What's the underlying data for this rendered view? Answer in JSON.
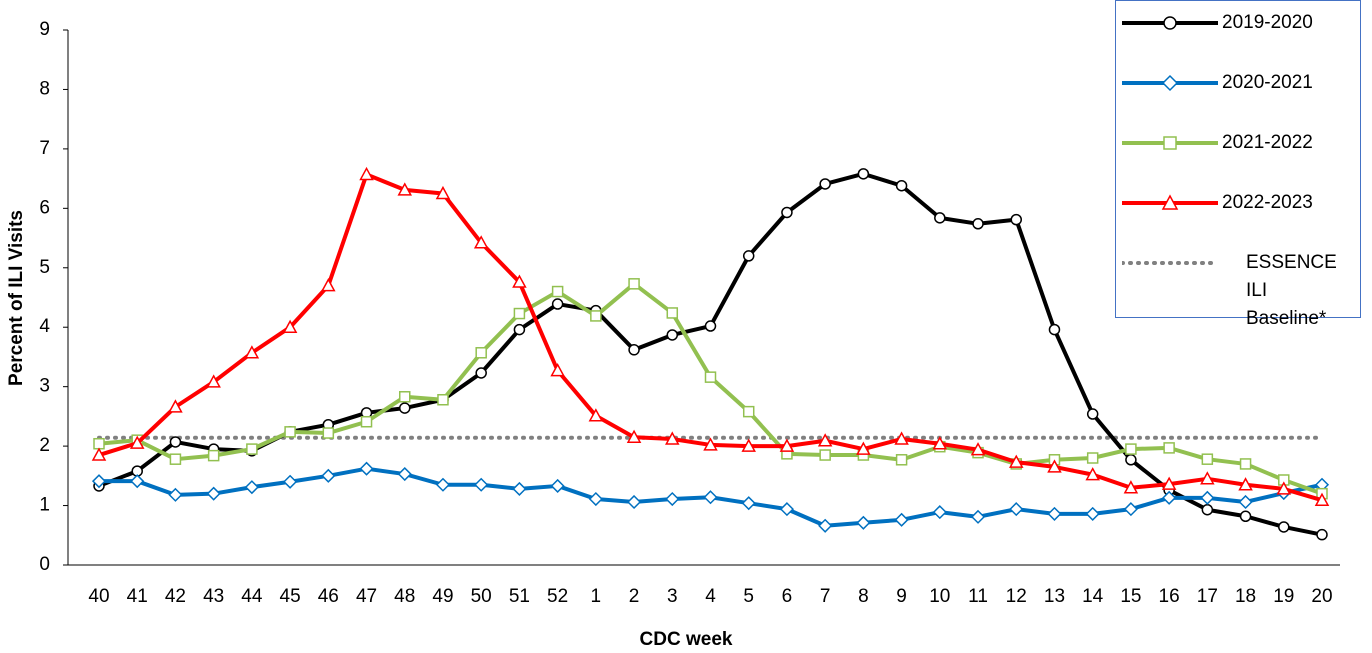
{
  "chart_data": {
    "type": "line",
    "x_label": "CDC week",
    "y_label": "Percent of ILI Visits",
    "categories": [
      "40",
      "41",
      "42",
      "43",
      "44",
      "45",
      "46",
      "47",
      "48",
      "49",
      "50",
      "51",
      "52",
      "1",
      "2",
      "3",
      "4",
      "5",
      "6",
      "7",
      "8",
      "9",
      "10",
      "11",
      "12",
      "13",
      "14",
      "15",
      "16",
      "17",
      "18",
      "19",
      "20"
    ],
    "ylim": [
      0,
      9
    ],
    "yticks": [
      0,
      1,
      2,
      3,
      4,
      5,
      6,
      7,
      8,
      9
    ],
    "series": [
      {
        "name": "2019-2020",
        "color": "#000000",
        "marker": "circle",
        "dash": "solid",
        "values": [
          1.33,
          1.58,
          2.07,
          1.95,
          1.92,
          2.24,
          2.36,
          2.56,
          2.64,
          2.78,
          3.23,
          3.96,
          4.39,
          4.28,
          3.62,
          3.87,
          4.02,
          5.2,
          5.93,
          6.41,
          6.58,
          6.38,
          5.84,
          5.74,
          5.81,
          3.96,
          2.54,
          1.77,
          1.26,
          0.93,
          0.82,
          0.64,
          0.51
        ]
      },
      {
        "name": "2020-2021",
        "color": "#0070c0",
        "marker": "diamond",
        "dash": "solid",
        "values": [
          1.41,
          1.41,
          1.18,
          1.2,
          1.31,
          1.4,
          1.5,
          1.62,
          1.53,
          1.35,
          1.35,
          1.28,
          1.33,
          1.11,
          1.06,
          1.11,
          1.14,
          1.04,
          0.94,
          0.66,
          0.71,
          0.76,
          0.89,
          0.81,
          0.94,
          0.86,
          0.86,
          0.94,
          1.13,
          1.13,
          1.06,
          1.21,
          1.35
        ]
      },
      {
        "name": "2021-2022",
        "color": "#92c050",
        "marker": "square",
        "dash": "solid",
        "values": [
          2.04,
          2.1,
          1.78,
          1.84,
          1.95,
          2.24,
          2.22,
          2.41,
          2.83,
          2.78,
          3.57,
          4.23,
          4.6,
          4.19,
          4.73,
          4.24,
          3.16,
          2.58,
          1.87,
          1.85,
          1.85,
          1.77,
          1.99,
          1.89,
          1.7,
          1.77,
          1.8,
          1.95,
          1.97,
          1.78,
          1.7,
          1.43,
          1.2
        ]
      },
      {
        "name": "2022-2023",
        "color": "#ff0000",
        "marker": "triangle",
        "dash": "solid",
        "values": [
          1.85,
          2.05,
          2.66,
          3.08,
          3.57,
          4.0,
          4.7,
          6.57,
          6.31,
          6.25,
          5.42,
          4.76,
          3.27,
          2.51,
          2.15,
          2.12,
          2.02,
          2.0,
          2.0,
          2.09,
          1.95,
          2.12,
          2.04,
          1.94,
          1.73,
          1.65,
          1.52,
          1.3,
          1.36,
          1.45,
          1.35,
          1.28,
          1.09
        ]
      },
      {
        "name": "ESSENCE ILI Baseline*",
        "color": "#808080",
        "marker": "none",
        "dash": "dotted",
        "values": [
          2.14,
          2.14,
          2.14,
          2.14,
          2.14,
          2.14,
          2.14,
          2.14,
          2.14,
          2.14,
          2.14,
          2.14,
          2.14,
          2.14,
          2.14,
          2.14,
          2.14,
          2.14,
          2.14,
          2.14,
          2.14,
          2.14,
          2.14,
          2.14,
          2.14,
          2.14,
          2.14,
          2.14,
          2.14,
          2.14,
          2.14,
          2.14,
          2.14
        ]
      }
    ]
  }
}
